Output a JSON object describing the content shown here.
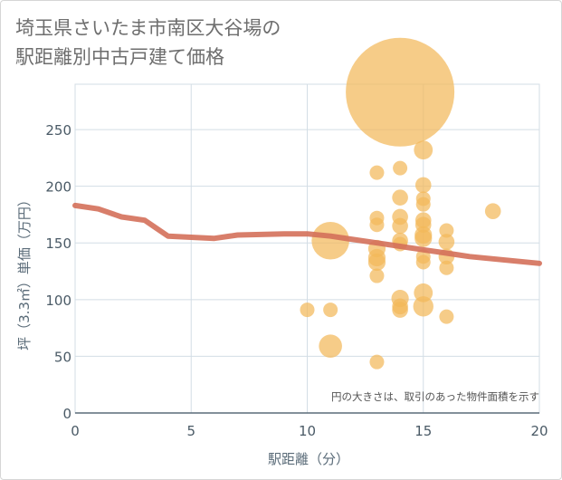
{
  "title_lines": [
    "埼玉県さいたま市南区大谷場の",
    "駅距離別中古戸建て価格"
  ],
  "chart_data": {
    "type": "scatter",
    "title": "埼玉県さいたま市南区大谷場の駅距離別中古戸建て価格",
    "xlabel": "駅距離（分）",
    "ylabel": "坪（3.3㎡）単価（万円）",
    "xlim": [
      0,
      20
    ],
    "ylim": [
      0,
      290
    ],
    "xticks": [
      0,
      5,
      10,
      15,
      20
    ],
    "yticks": [
      0,
      50,
      100,
      150,
      200,
      250
    ],
    "grid": true,
    "note": "円の大きさは、取引のあった物件面積を示す",
    "colors": {
      "bubble": "#f2b85a",
      "trend": "#d4705a",
      "grid": "#d3dde5",
      "axis": "#5a6b78"
    },
    "points": [
      {
        "x": 10,
        "y": 91,
        "size": 1
      },
      {
        "x": 11,
        "y": 152,
        "size": 2.6
      },
      {
        "x": 11,
        "y": 91,
        "size": 1
      },
      {
        "x": 11,
        "y": 59,
        "size": 1.6
      },
      {
        "x": 13,
        "y": 212,
        "size": 1
      },
      {
        "x": 13,
        "y": 172,
        "size": 1
      },
      {
        "x": 13,
        "y": 166,
        "size": 1
      },
      {
        "x": 13,
        "y": 145,
        "size": 1.2
      },
      {
        "x": 13,
        "y": 137,
        "size": 1.2
      },
      {
        "x": 13,
        "y": 133,
        "size": 1.2
      },
      {
        "x": 13,
        "y": 121,
        "size": 1
      },
      {
        "x": 13,
        "y": 45,
        "size": 1
      },
      {
        "x": 14,
        "y": 283,
        "size": 7.5
      },
      {
        "x": 14,
        "y": 216,
        "size": 1
      },
      {
        "x": 14,
        "y": 190,
        "size": 1.1
      },
      {
        "x": 14,
        "y": 173,
        "size": 1.1
      },
      {
        "x": 14,
        "y": 165,
        "size": 1.1
      },
      {
        "x": 14,
        "y": 152,
        "size": 1.1
      },
      {
        "x": 14,
        "y": 149,
        "size": 1
      },
      {
        "x": 14,
        "y": 101,
        "size": 1.2
      },
      {
        "x": 14,
        "y": 94,
        "size": 1.1
      },
      {
        "x": 14,
        "y": 91,
        "size": 1.1
      },
      {
        "x": 15,
        "y": 232,
        "size": 1.3
      },
      {
        "x": 15,
        "y": 201,
        "size": 1.1
      },
      {
        "x": 15,
        "y": 189,
        "size": 1
      },
      {
        "x": 15,
        "y": 184,
        "size": 1
      },
      {
        "x": 15,
        "y": 170,
        "size": 1.1
      },
      {
        "x": 15,
        "y": 166,
        "size": 1.1
      },
      {
        "x": 15,
        "y": 157,
        "size": 1.2
      },
      {
        "x": 15,
        "y": 154,
        "size": 1.2
      },
      {
        "x": 15,
        "y": 138,
        "size": 1
      },
      {
        "x": 15,
        "y": 133,
        "size": 1
      },
      {
        "x": 15,
        "y": 106,
        "size": 1.3
      },
      {
        "x": 15,
        "y": 94,
        "size": 1.4
      },
      {
        "x": 16,
        "y": 161,
        "size": 1
      },
      {
        "x": 16,
        "y": 151,
        "size": 1.1
      },
      {
        "x": 16,
        "y": 138,
        "size": 1.1
      },
      {
        "x": 16,
        "y": 128,
        "size": 1
      },
      {
        "x": 16,
        "y": 85,
        "size": 1
      },
      {
        "x": 18,
        "y": 178,
        "size": 1.1
      }
    ],
    "trend": {
      "x": [
        0,
        1,
        2,
        3,
        4,
        5,
        6,
        7,
        8,
        9,
        10,
        11,
        12,
        13,
        14,
        15,
        16,
        17,
        18,
        19,
        20
      ],
      "y": [
        183,
        180,
        173,
        170,
        156,
        155,
        154,
        157,
        157.5,
        158,
        158,
        156,
        153,
        150,
        147,
        144,
        141,
        138,
        136,
        134,
        132
      ]
    }
  }
}
